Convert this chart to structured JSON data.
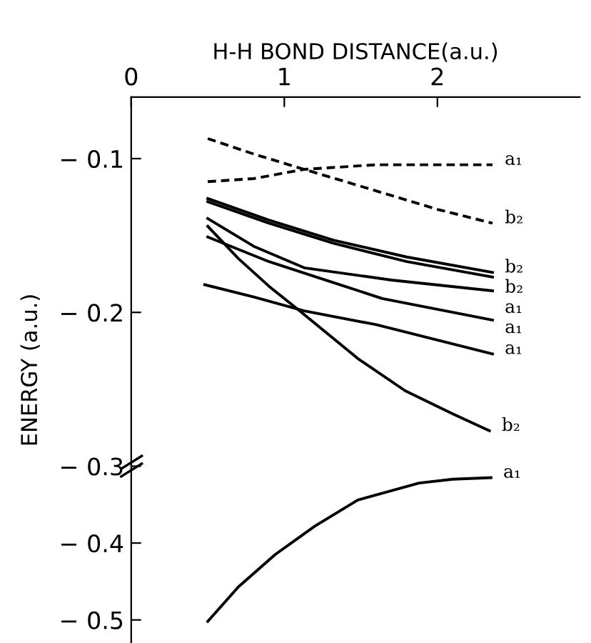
{
  "chart_data": {
    "type": "line",
    "xlabel": "H-H BOND DISTANCE(a.u.)",
    "ylabel": "ENERGY (a.u.)",
    "xlim": [
      0,
      2.93
    ],
    "xticks": [
      0,
      1,
      2
    ],
    "ylim": [
      -0.415,
      -0.06
    ],
    "yticks": [
      -0.1,
      -0.2,
      -0.3
    ],
    "y2lim": [
      -0.53,
      0.18
    ],
    "y2ticks": [
      -0.4,
      -0.5
    ],
    "grid": false,
    "legend": false,
    "marker": "none",
    "series": [
      {
        "name": "a₁",
        "color": "#000000",
        "line_style": "dashed",
        "x": [
          0.5,
          0.8,
          1.13,
          1.6,
          2.0,
          2.36
        ],
        "values": [
          -0.115,
          -0.113,
          -0.107,
          -0.104,
          -0.104,
          -0.104
        ]
      },
      {
        "name": "b₂",
        "color": "#000000",
        "line_style": "dashed",
        "x": [
          0.5,
          0.8,
          1.13,
          1.5,
          2.0,
          2.36
        ],
        "values": [
          -0.087,
          -0.097,
          -0.107,
          -0.118,
          -0.133,
          -0.142
        ]
      },
      {
        "name": "b₂",
        "color": "#000000",
        "line_style": "solid",
        "x": [
          0.5,
          0.9,
          1.32,
          1.8,
          2.36
        ],
        "values": [
          -0.126,
          -0.14,
          -0.153,
          -0.164,
          -0.174
        ]
      },
      {
        "name": "b₂",
        "color": "#000000",
        "line_style": "solid",
        "x": [
          0.5,
          0.9,
          1.32,
          1.8,
          2.36
        ],
        "values": [
          -0.128,
          -0.142,
          -0.155,
          -0.167,
          -0.177
        ]
      },
      {
        "name": "a₁",
        "color": "#000000",
        "line_style": "solid",
        "x": [
          0.5,
          0.8,
          1.13,
          1.7,
          2.36
        ],
        "values": [
          -0.139,
          -0.157,
          -0.171,
          -0.179,
          -0.186
        ]
      },
      {
        "name": "a₁",
        "color": "#000000",
        "line_style": "solid",
        "x": [
          0.5,
          0.9,
          1.3,
          1.64,
          2.36
        ],
        "values": [
          -0.151,
          -0.167,
          -0.18,
          -0.191,
          -0.205
        ]
      },
      {
        "name": "a₁",
        "color": "#000000",
        "line_style": "solid",
        "x": [
          0.48,
          0.8,
          1.13,
          1.6,
          2.36
        ],
        "values": [
          -0.182,
          -0.19,
          -0.199,
          -0.208,
          -0.227
        ]
      },
      {
        "name": "b₂",
        "color": "#000000",
        "line_style": "solid",
        "x": [
          0.5,
          0.7,
          0.9,
          1.1,
          1.48,
          1.79,
          2.1,
          2.34
        ],
        "values": [
          -0.144,
          -0.165,
          -0.183,
          -0.199,
          -0.23,
          -0.251,
          -0.266,
          -0.277
        ]
      },
      {
        "name": "a₁",
        "color": "#000000",
        "line_style": "solid",
        "axis": "y2",
        "x": [
          0.5,
          0.7,
          0.94,
          1.2,
          1.48,
          1.88,
          2.1,
          2.35
        ],
        "values": [
          -0.502,
          -0.457,
          -0.415,
          -0.378,
          -0.344,
          -0.322,
          -0.317,
          -0.315
        ]
      }
    ]
  }
}
